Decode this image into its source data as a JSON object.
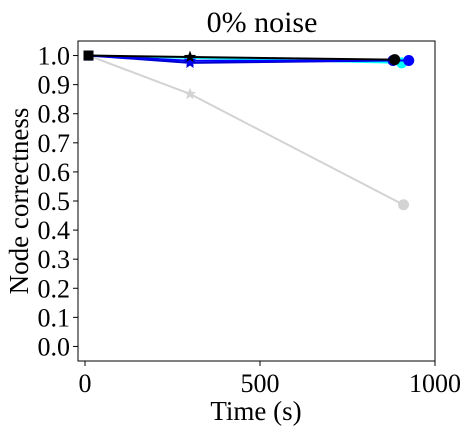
{
  "chart_data": {
    "type": "line",
    "title": "0% noise",
    "xlabel": "Time (s)",
    "ylabel": "Node correctness",
    "xlim": [
      -20,
      1000
    ],
    "ylim": [
      -0.05,
      1.05
    ],
    "x_ticks": [
      0,
      500,
      1000
    ],
    "x_tick_labels": [
      "0",
      "500",
      "1000"
    ],
    "y_ticks": [
      0.0,
      0.1,
      0.2,
      0.3,
      0.4,
      0.5,
      0.6,
      0.7,
      0.8,
      0.9,
      1.0
    ],
    "y_tick_labels": [
      "0.0",
      "0.1",
      "0.2",
      "0.3",
      "0.4",
      "0.5",
      "0.6",
      "0.7",
      "0.8",
      "0.9",
      "1.0"
    ],
    "grid": false,
    "series": [
      {
        "color": "#d3d3d3",
        "x": [
          10,
          300,
          910
        ],
        "y": [
          1.0,
          0.868,
          0.487
        ]
      },
      {
        "color": "#00ffff",
        "x": [
          10,
          300,
          905
        ],
        "y": [
          1.0,
          0.992,
          0.975
        ]
      },
      {
        "color": "#0000cd",
        "x": [
          10,
          300,
          880
        ],
        "y": [
          1.0,
          0.975,
          0.983
        ]
      },
      {
        "color": "#0000ff",
        "x": [
          10,
          300,
          925
        ],
        "y": [
          1.0,
          0.982,
          0.983
        ]
      },
      {
        "color": "#000000",
        "x": [
          10,
          300,
          885
        ],
        "y": [
          1.0,
          0.995,
          0.986
        ]
      }
    ],
    "marker_sequence": [
      "square",
      "star",
      "circle"
    ]
  }
}
